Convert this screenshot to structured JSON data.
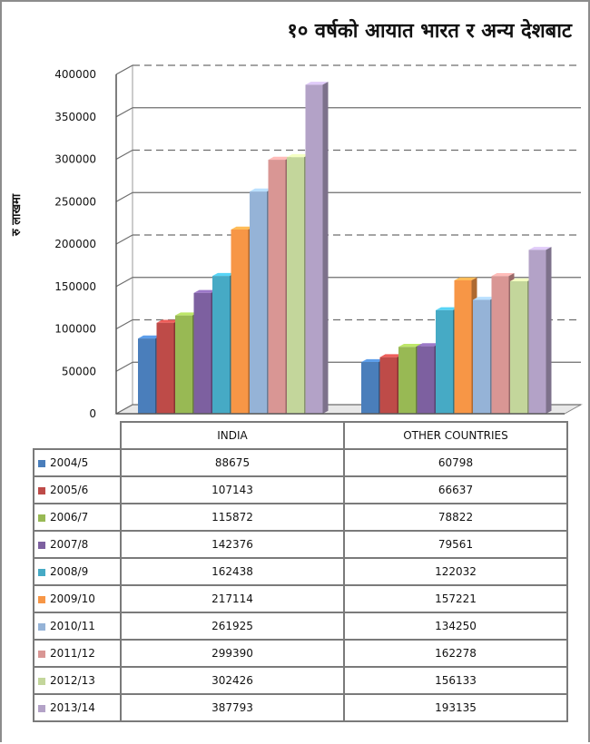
{
  "chart_data": {
    "type": "bar",
    "title": "१० वर्षको आयात भारत र अन्य देशबाट",
    "ylabel": "रु लाखमा",
    "xlabel": "",
    "categories": [
      "INDIA",
      "OTHER COUNTRIES"
    ],
    "ylim": [
      0,
      400000
    ],
    "yticks": [
      "0",
      "50000",
      "100000",
      "150000",
      "200000",
      "250000",
      "300000",
      "350000",
      "400000"
    ],
    "grid": true,
    "legend": "table-rows",
    "series": [
      {
        "name": "2004/5",
        "color": "#4a7ebb",
        "values": [
          88675,
          60798
        ],
        "labels": [
          "88675",
          "60798"
        ]
      },
      {
        "name": "2005/6",
        "color": "#be4b48",
        "values": [
          107143,
          66637
        ],
        "labels": [
          "107143",
          "66637"
        ]
      },
      {
        "name": "2006/7",
        "color": "#98b954",
        "values": [
          115872,
          78822
        ],
        "labels": [
          "115872",
          "78822"
        ]
      },
      {
        "name": "2007/8",
        "color": "#7d60a0",
        "values": [
          142376,
          79561
        ],
        "labels": [
          "142376",
          "79561"
        ]
      },
      {
        "name": "2008/9",
        "color": "#46aac5",
        "values": [
          162438,
          122032
        ],
        "labels": [
          "162438",
          "122032"
        ]
      },
      {
        "name": "2009/10",
        "color": "#f79646",
        "values": [
          217114,
          157221
        ],
        "labels": [
          "217114",
          "157221"
        ]
      },
      {
        "name": "2010/11",
        "color": "#95b3d7",
        "values": [
          261925,
          134250
        ],
        "labels": [
          "261925",
          "134250"
        ]
      },
      {
        "name": "2011/12",
        "color": "#d99694",
        "values": [
          299390,
          162278
        ],
        "labels": [
          "299390",
          "162278"
        ]
      },
      {
        "name": "2012/13",
        "color": "#c3d69b",
        "values": [
          302426,
          156133
        ],
        "labels": [
          "302426",
          "156133"
        ]
      },
      {
        "name": "2013/14",
        "color": "#b3a2c7",
        "values": [
          387793,
          193135
        ],
        "labels": [
          "387793",
          "193135"
        ]
      }
    ]
  }
}
